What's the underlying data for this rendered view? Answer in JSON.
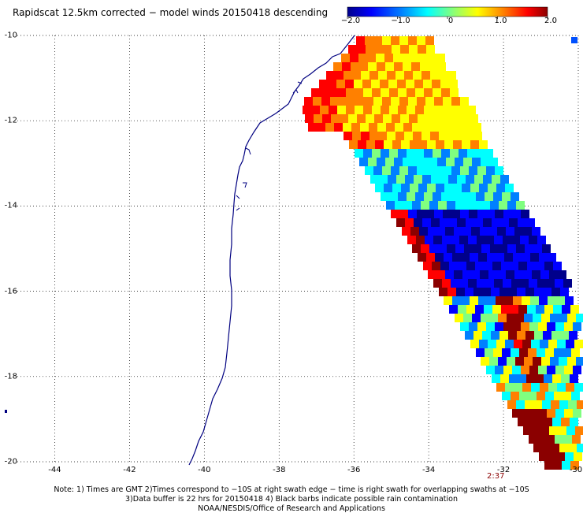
{
  "title": "Rapidscat 12.5km corrected − model winds 20150418 descending",
  "colorbar": {
    "tick_labels": [
      "−2.0",
      "−1.0",
      "0",
      "1.0",
      "2.0"
    ],
    "tick_values": [
      -2.0,
      -1.0,
      0,
      1.0,
      2.0
    ],
    "range": [
      -2.0,
      2.0
    ],
    "colors": [
      "#00008b",
      "#0000ff",
      "#0080ff",
      "#00ffff",
      "#80ff80",
      "#ffff00",
      "#ff8000",
      "#ff0000",
      "#8b0000"
    ]
  },
  "map": {
    "lat_labels": [
      "-10",
      "-12",
      "-14",
      "-16",
      "-18",
      "-20"
    ],
    "lat_values": [
      -10,
      -12,
      -14,
      -16,
      -18,
      -20
    ],
    "lon_labels": [
      "-44",
      "-42",
      "-40",
      "-38",
      "-36",
      "-34",
      "-32",
      "-30"
    ],
    "lon_values": [
      -44,
      -42,
      -40,
      -38,
      -36,
      -34,
      -32,
      -30
    ],
    "lon_range": [
      -45,
      -30
    ],
    "lat_range": [
      -20,
      -10
    ],
    "coastline_color": "#000080",
    "grid": "dotted",
    "swath_time": "2:37"
  },
  "notes": [
    "Note: 1) Times are GMT 2)Times correspond to −10S at right swath edge − time is right swath for overlapping swaths at −10S",
    "3)Data buffer is 22 hrs for 20150418 4) Black barbs indicate possible rain contamination",
    "NOAA/NESDIS/Office of Research and Applications"
  ]
}
